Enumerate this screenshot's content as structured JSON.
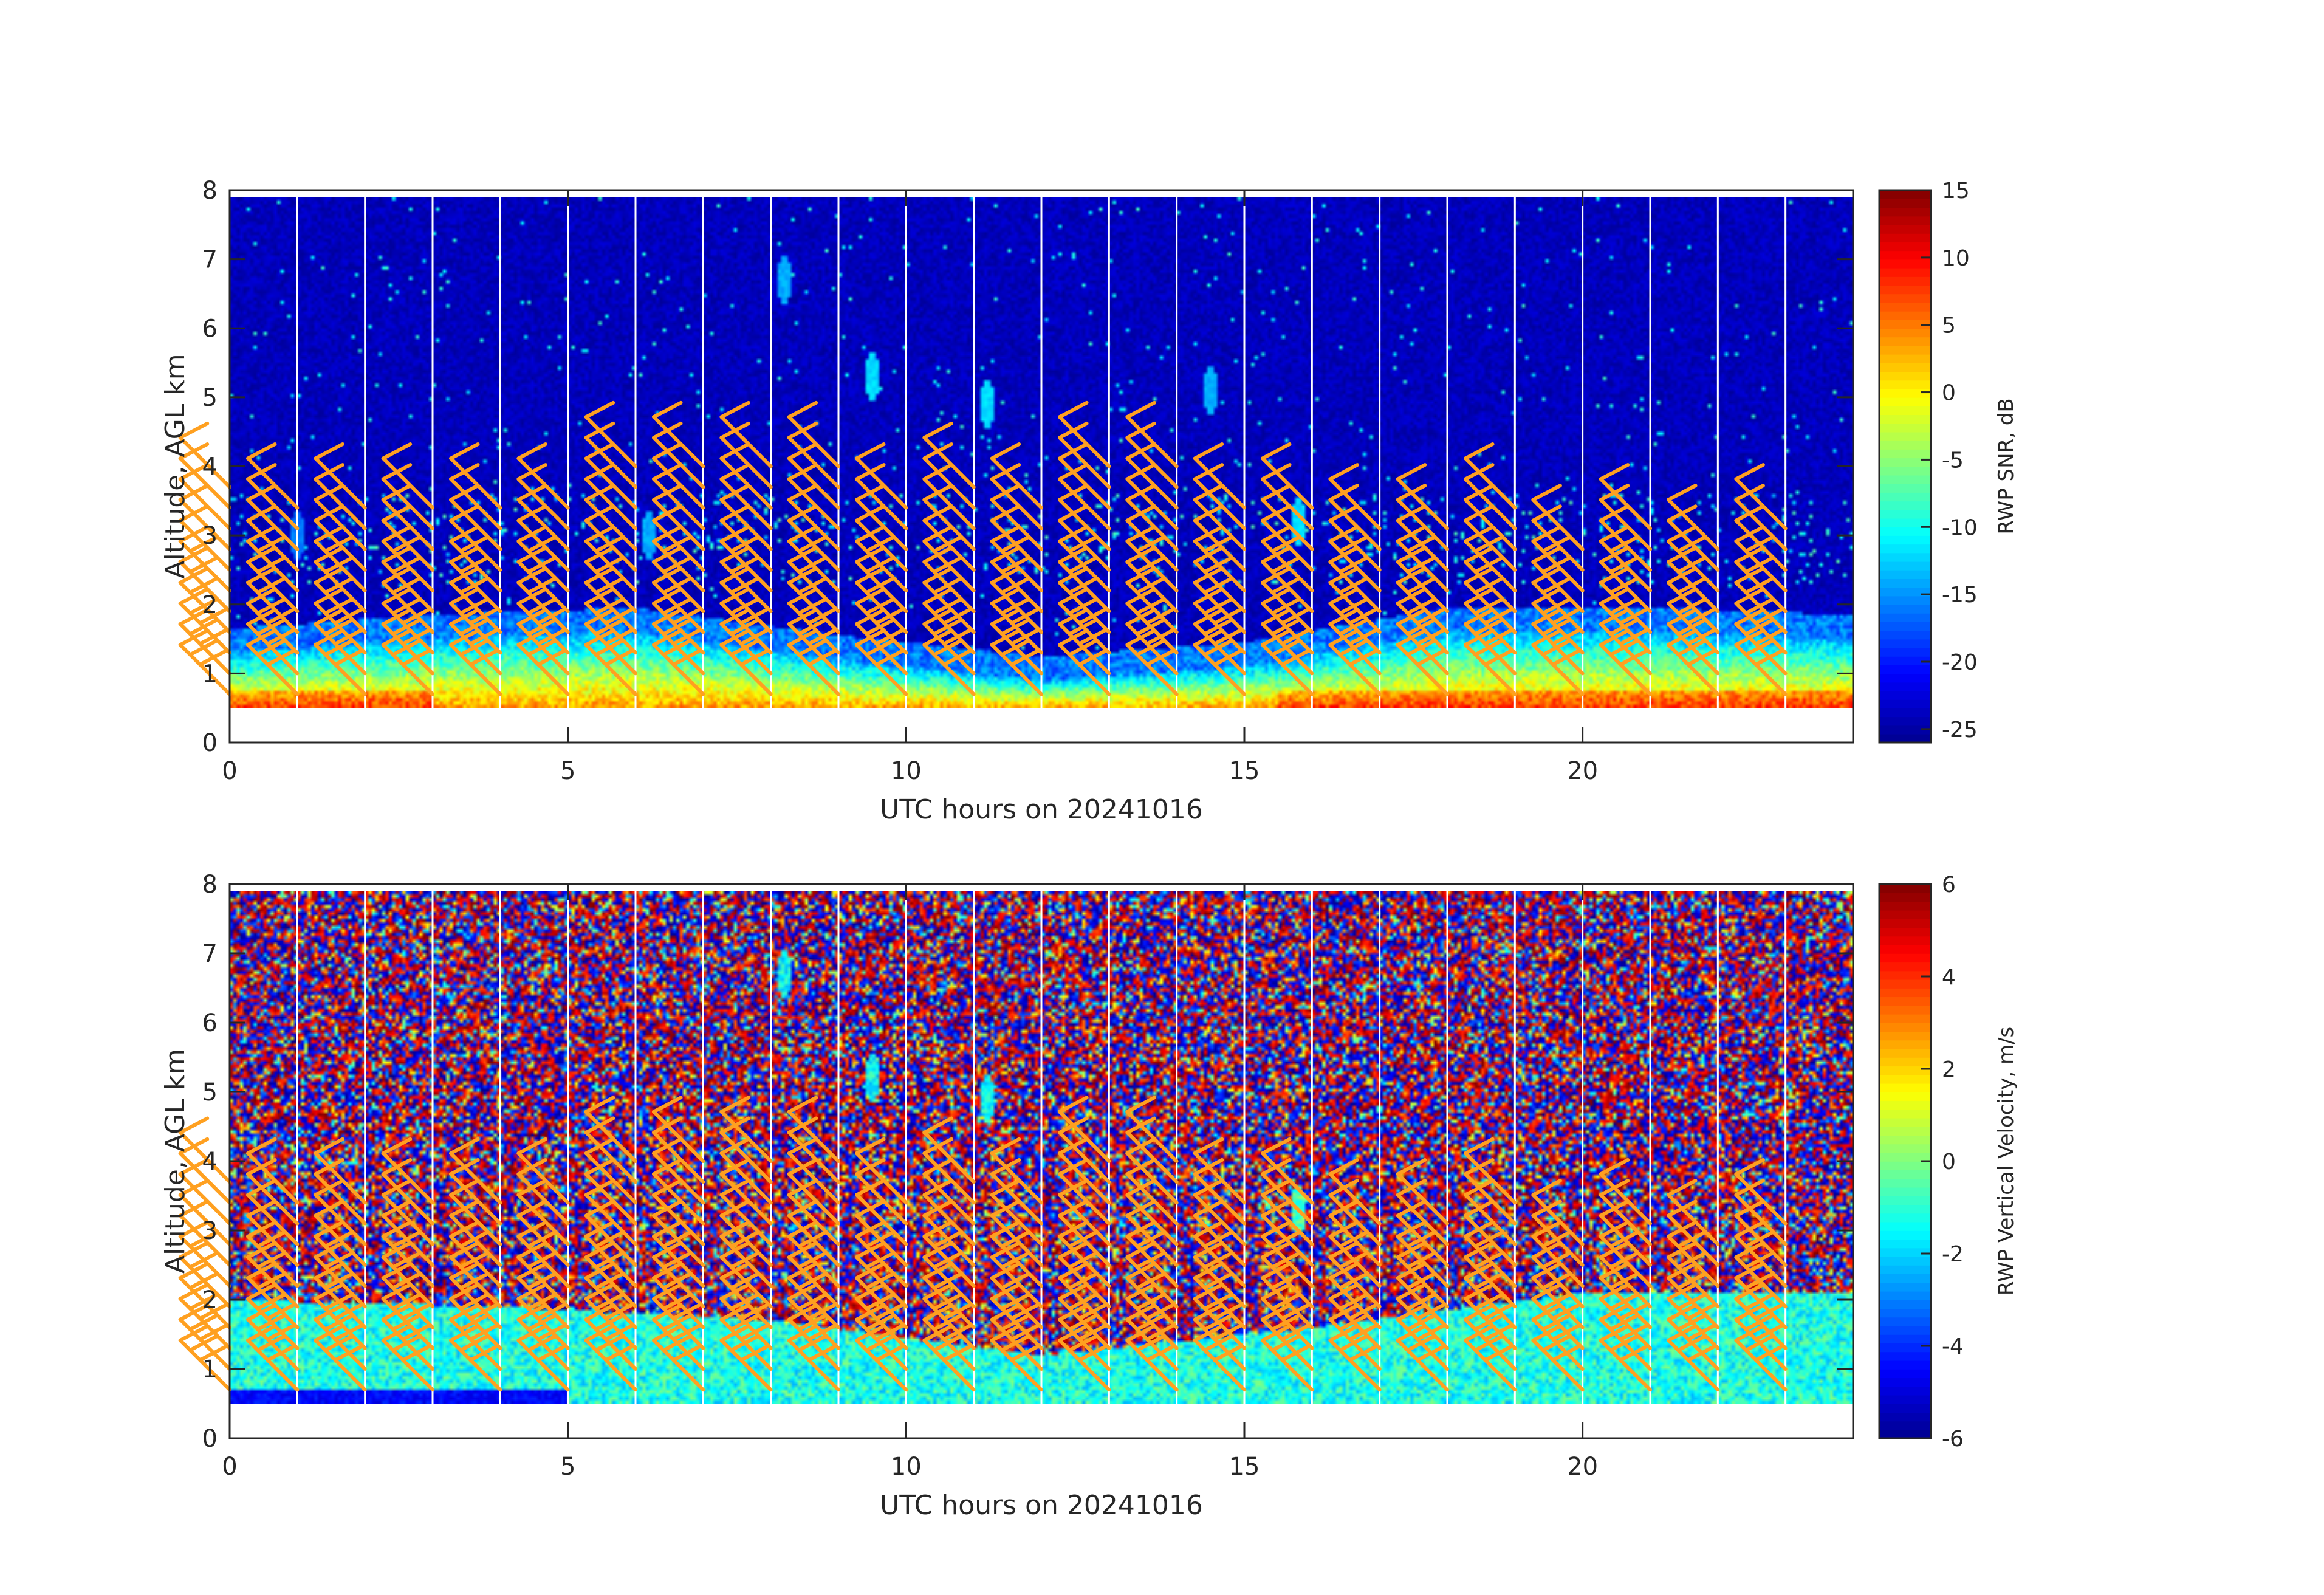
{
  "colormap": [
    "#00008f",
    "#0000ff",
    "#0080ff",
    "#00ffff",
    "#80ff80",
    "#ffff00",
    "#ff8000",
    "#ff0000",
    "#800000"
  ],
  "barb_color": "#ffa020",
  "gap_color": "#ffffff",
  "chart_data": [
    {
      "type": "heatmap",
      "xlabel": "UTC hours on 20241016",
      "ylabel": "Altitude, AGL km",
      "xlim": [
        0,
        24
      ],
      "ylim": [
        0,
        8
      ],
      "x_ticks": [
        0,
        5,
        10,
        15,
        20
      ],
      "x_tick_labels": [
        "0",
        "5",
        "10",
        "15",
        "20"
      ],
      "y_ticks": [
        0,
        1,
        2,
        3,
        4,
        5,
        6,
        7,
        8
      ],
      "y_tick_labels": [
        "0",
        "1",
        "2",
        "3",
        "4",
        "5",
        "6",
        "7",
        "8"
      ],
      "data_altitude_range_km": [
        0.5,
        7.9
      ],
      "colorbar": {
        "label": "RWP SNR, dB",
        "range": [
          -26,
          15
        ],
        "ticks": [
          -25,
          -20,
          -15,
          -10,
          -5,
          0,
          5,
          10,
          15
        ],
        "tick_labels": [
          "-25",
          "-20",
          "-15",
          "-10",
          "-5",
          "0",
          "5",
          "10",
          "15"
        ]
      },
      "background_value": -24,
      "boundary_layer_tops_km": [
        {
          "hour": 0,
          "top": 1.3
        },
        {
          "hour": 3,
          "top": 1.5
        },
        {
          "hour": 6,
          "top": 1.6
        },
        {
          "hour": 9,
          "top": 1.2
        },
        {
          "hour": 12,
          "top": 0.9
        },
        {
          "hour": 15,
          "top": 1.1
        },
        {
          "hour": 18,
          "top": 1.6
        },
        {
          "hour": 21,
          "top": 1.6
        },
        {
          "hour": 24,
          "top": 1.5
        }
      ],
      "features": [
        {
          "hour": 8.2,
          "alt": 6.7,
          "value": -14
        },
        {
          "hour": 9.5,
          "alt": 5.3,
          "value": -12
        },
        {
          "hour": 11.2,
          "alt": 4.9,
          "value": -12
        },
        {
          "hour": 14.5,
          "alt": 5.1,
          "value": -14
        },
        {
          "hour": 15.8,
          "alt": 3.2,
          "value": -12
        },
        {
          "hour": 1.0,
          "alt": 3.0,
          "value": -16
        },
        {
          "hour": 6.2,
          "alt": 3.0,
          "value": -14
        }
      ]
    },
    {
      "type": "heatmap",
      "xlabel": "UTC hours on 20241016",
      "ylabel": "Altitude, AGL km",
      "xlim": [
        0,
        24
      ],
      "ylim": [
        0,
        8
      ],
      "x_ticks": [
        0,
        5,
        10,
        15,
        20
      ],
      "x_tick_labels": [
        "0",
        "5",
        "10",
        "15",
        "20"
      ],
      "y_ticks": [
        0,
        1,
        2,
        3,
        4,
        5,
        6,
        7,
        8
      ],
      "y_tick_labels": [
        "0",
        "1",
        "2",
        "3",
        "4",
        "5",
        "6",
        "7",
        "8"
      ],
      "data_altitude_range_km": [
        0.5,
        7.9
      ],
      "colorbar": {
        "label": "RWP Vertical Velocity, m/s",
        "range": [
          -6,
          6
        ],
        "ticks": [
          -6,
          -4,
          -2,
          0,
          2,
          4,
          6
        ],
        "tick_labels": [
          "-6",
          "-4",
          "-2",
          "0",
          "2",
          "4",
          "6"
        ]
      },
      "background_value": "noise",
      "boundary_layer_tops_km": [
        {
          "hour": 0,
          "top": 2.0
        },
        {
          "hour": 4,
          "top": 1.9
        },
        {
          "hour": 8,
          "top": 1.7
        },
        {
          "hour": 12,
          "top": 1.2
        },
        {
          "hour": 16,
          "top": 1.6
        },
        {
          "hour": 20,
          "top": 2.1
        },
        {
          "hour": 24,
          "top": 2.1
        }
      ],
      "features": [
        {
          "hour": 8.2,
          "alt": 6.7,
          "value": -1.5
        },
        {
          "hour": 9.5,
          "alt": 5.2,
          "value": -1.5
        },
        {
          "hour": 11.2,
          "alt": 4.9,
          "value": -1.5
        },
        {
          "hour": 15.8,
          "alt": 3.3,
          "value": -0.5
        }
      ]
    }
  ],
  "wind_barbs": {
    "hours": [
      0,
      1,
      2,
      3,
      4,
      5,
      6,
      7,
      8,
      9,
      10,
      11,
      12,
      13,
      14,
      15,
      16,
      17,
      18,
      19,
      20,
      21,
      22,
      23
    ],
    "altitudes_km": [
      0.7,
      1.0,
      1.3,
      1.6,
      1.9,
      2.2,
      2.5,
      2.8,
      3.1,
      3.4,
      3.7,
      4.0
    ],
    "max_altitude_km": [
      3.9,
      3.5,
      3.5,
      3.6,
      3.5,
      3.6,
      4.1,
      4.1,
      4.2,
      4.2,
      3.6,
      3.7,
      3.6,
      5.2,
      5.2,
      3.6,
      3.4,
      3.1,
      3.3,
      3.5,
      3.0,
      3.1,
      3.0,
      3.1
    ],
    "direction_from_deg": 315,
    "speed_range_kt": [
      10,
      30
    ]
  }
}
